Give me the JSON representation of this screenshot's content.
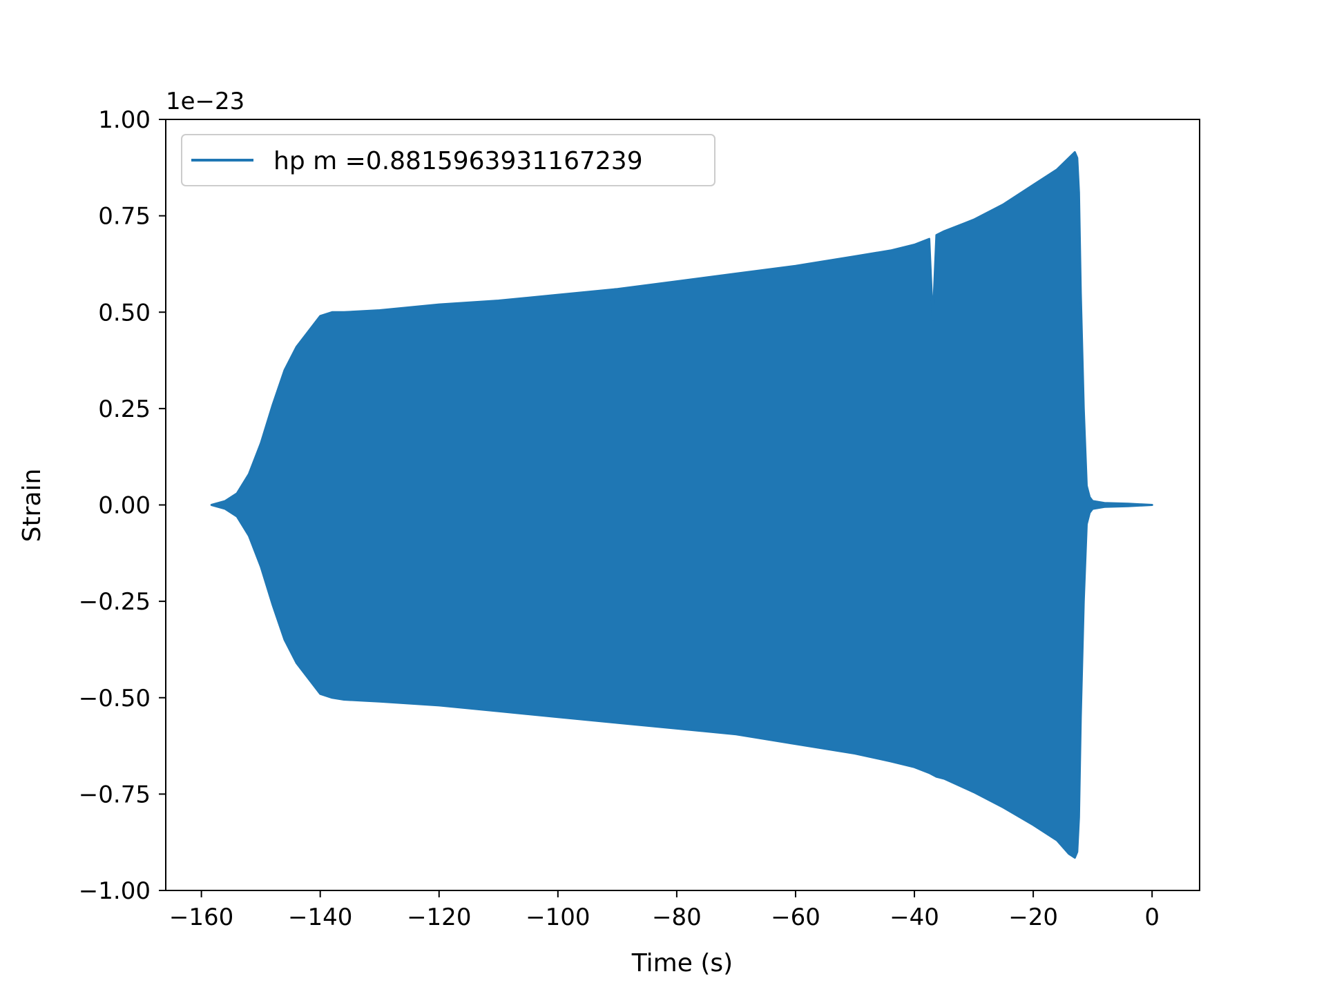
{
  "chart_data": {
    "type": "area",
    "xlabel": "Time (s)",
    "ylabel": "Strain",
    "y_scale_label": "1e−23",
    "y_scale_exponent": -23,
    "xlim": [
      -166,
      8
    ],
    "ylim": [
      -1.0,
      1.0
    ],
    "x_ticks": [
      -160,
      -140,
      -120,
      -100,
      -80,
      -60,
      -40,
      -20,
      0
    ],
    "x_tick_labels": [
      "−160",
      "−140",
      "−120",
      "−100",
      "−80",
      "−60",
      "−40",
      "−20",
      "0"
    ],
    "y_ticks": [
      -1.0,
      -0.75,
      -0.5,
      -0.25,
      0.0,
      0.25,
      0.5,
      0.75,
      1.0
    ],
    "y_tick_labels": [
      "−1.00",
      "−0.75",
      "−0.50",
      "−0.25",
      "0.00",
      "0.25",
      "0.50",
      "0.75",
      "1.00"
    ],
    "grid": false,
    "legend_position": "top-left",
    "series": [
      {
        "name": "hp m =0.8815963931167239",
        "color": "#1f77b4",
        "x": [
          -158.3,
          -156,
          -154,
          -152,
          -150,
          -148,
          -146,
          -144,
          -142,
          -140,
          -138,
          -136,
          -130,
          -120,
          -110,
          -100,
          -90,
          -80,
          -70,
          -60,
          -50,
          -44,
          -40,
          -37.5,
          -36.9,
          -36.3,
          -35,
          -30,
          -25,
          -20,
          -16,
          -14,
          -13,
          -12.6,
          -12.3,
          -12.0,
          -11.5,
          -11.0,
          -10.5,
          -10.0,
          -8,
          -4,
          0
        ],
        "upper": [
          0.0,
          0.01,
          0.03,
          0.08,
          0.16,
          0.26,
          0.35,
          0.41,
          0.45,
          0.49,
          0.5,
          0.5,
          0.505,
          0.52,
          0.53,
          0.545,
          0.56,
          0.58,
          0.6,
          0.62,
          0.645,
          0.66,
          0.675,
          0.69,
          0.48,
          0.7,
          0.71,
          0.74,
          0.78,
          0.83,
          0.87,
          0.9,
          0.915,
          0.9,
          0.81,
          0.55,
          0.25,
          0.05,
          0.02,
          0.01,
          0.005,
          0.003,
          0.0
        ],
        "lower": [
          0.0,
          -0.01,
          -0.03,
          -0.08,
          -0.16,
          -0.26,
          -0.35,
          -0.41,
          -0.45,
          -0.49,
          -0.5,
          -0.505,
          -0.51,
          -0.52,
          -0.535,
          -0.55,
          -0.565,
          -0.58,
          -0.595,
          -0.62,
          -0.645,
          -0.665,
          -0.68,
          -0.695,
          -0.7,
          -0.705,
          -0.71,
          -0.745,
          -0.785,
          -0.83,
          -0.87,
          -0.905,
          -0.915,
          -0.9,
          -0.81,
          -0.55,
          -0.25,
          -0.05,
          -0.02,
          -0.01,
          -0.005,
          -0.003,
          0.0
        ]
      }
    ]
  }
}
